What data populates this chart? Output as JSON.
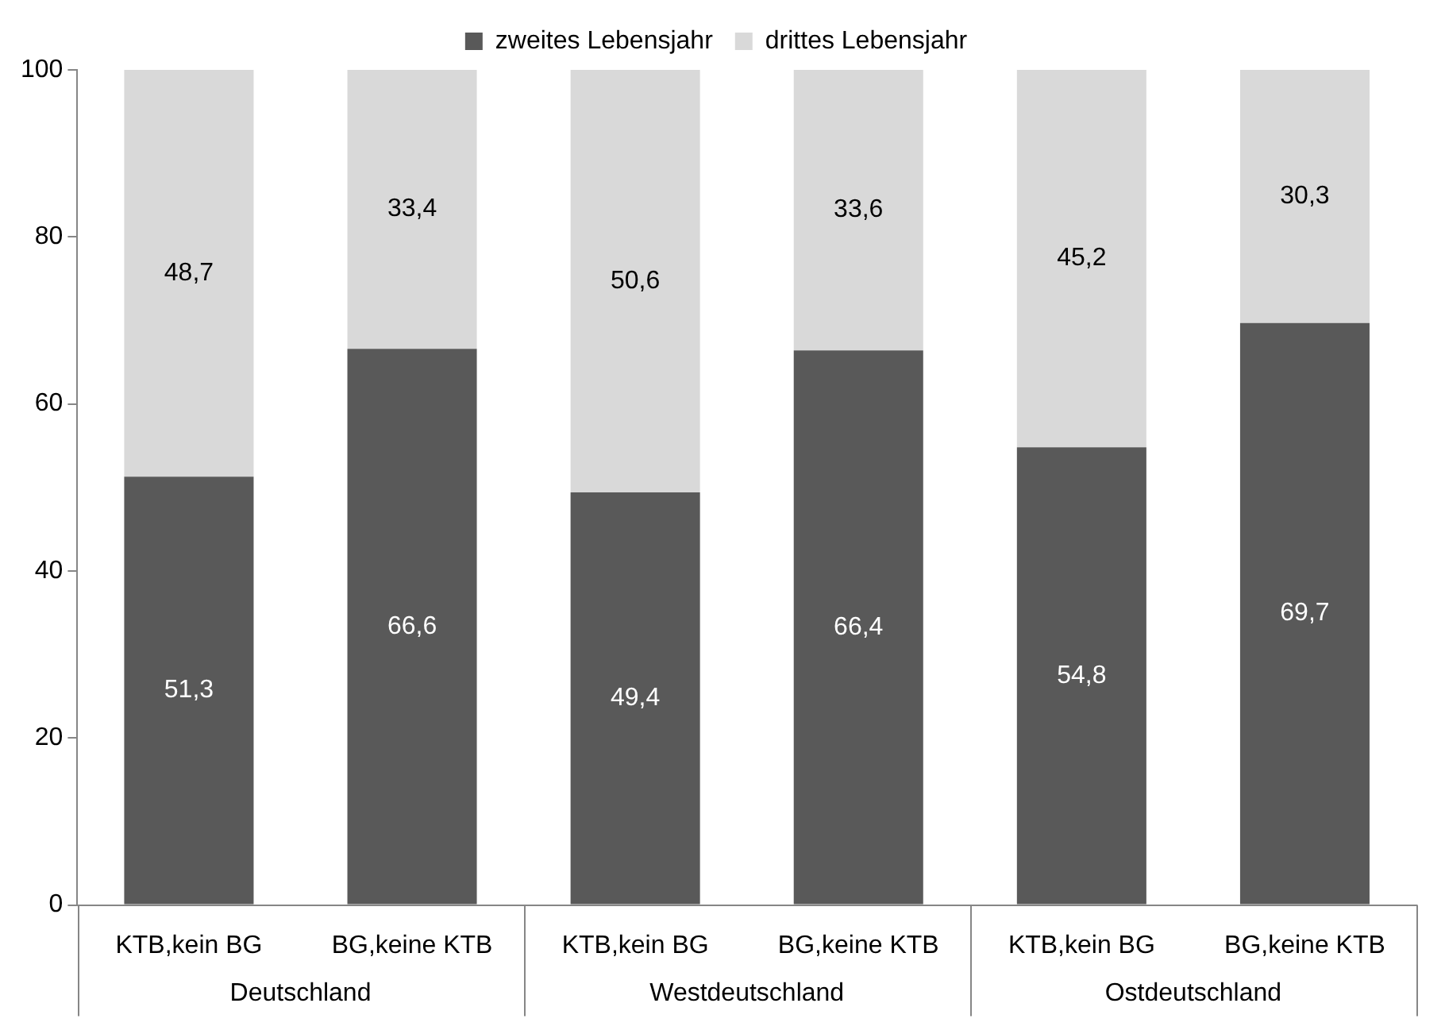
{
  "chart_data": {
    "type": "bar",
    "stacked": true,
    "categories": [
      "KTB,kein BG",
      "BG,keine KTB",
      "KTB,kein BG",
      "BG,keine KTB",
      "KTB,kein BG",
      "BG,keine KTB"
    ],
    "series": [
      {
        "name": "zweites Lebensjahr",
        "color": "#595959",
        "values": [
          51.3,
          66.6,
          49.4,
          66.4,
          54.8,
          69.7
        ],
        "value_labels": [
          "51,3",
          "66,6",
          "49,4",
          "66,4",
          "54,8",
          "69,7"
        ]
      },
      {
        "name": "drittes Lebensjahr",
        "color": "#d9d9d9",
        "values": [
          48.7,
          33.4,
          50.6,
          33.6,
          45.2,
          30.3
        ],
        "value_labels": [
          "48,7",
          "33,4",
          "50,6",
          "33,6",
          "45,2",
          "30,3"
        ]
      }
    ],
    "annotations": [
      "Deutschland",
      "Westdeutschland",
      "Ostdeutschland"
    ],
    "ylim": [
      0,
      100
    ],
    "yticks": [
      0,
      20,
      40,
      60,
      80,
      100
    ],
    "grid": false,
    "legend": "top"
  }
}
